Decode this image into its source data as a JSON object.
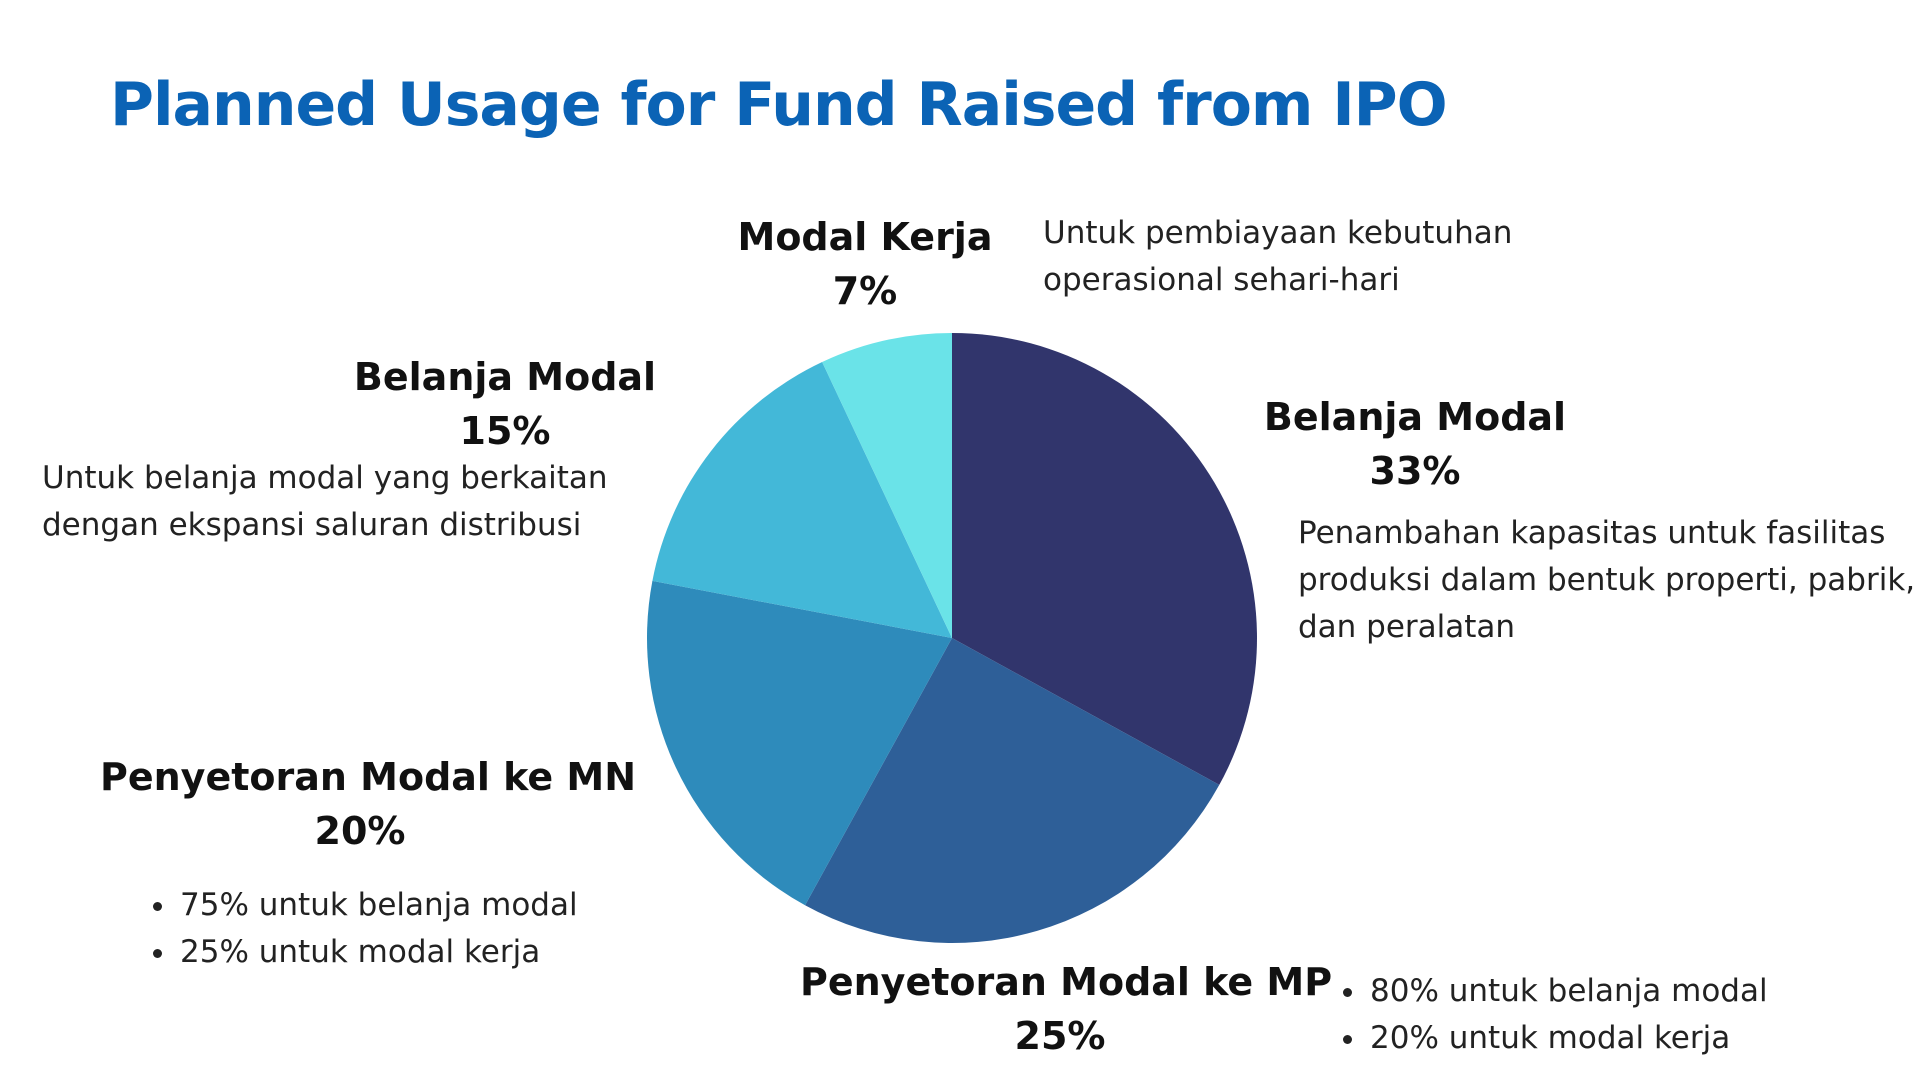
{
  "title": "Planned Usage for Fund Raised from IPO",
  "chart_data": {
    "type": "pie",
    "title": "Planned Usage for Fund Raised from IPO",
    "start": "12 o'clock",
    "direction": "clockwise",
    "slices": [
      {
        "label": "Belanja Modal",
        "value": 33,
        "display": "33%",
        "color": "#31356c",
        "description": [
          "Penambahan kapasitas untuk fasilitas",
          "produksi dalam bentuk properti, pabrik,",
          "dan peralatan"
        ]
      },
      {
        "label": "Penyetoran Modal ke MP",
        "value": 25,
        "display": "25%",
        "color": "#2e5f98",
        "bullets": [
          "80% untuk belanja modal",
          "20% untuk modal kerja"
        ]
      },
      {
        "label": "Penyetoran Modal ke MN",
        "value": 20,
        "display": "20%",
        "color": "#2e8bbb",
        "bullets": [
          "75% untuk belanja modal",
          "25% untuk modal kerja"
        ]
      },
      {
        "label": "Belanja Modal",
        "value": 15,
        "display": "15%",
        "color": "#43b8d8",
        "description": [
          "Untuk belanja modal yang berkaitan",
          "dengan ekspansi saluran distribusi"
        ]
      },
      {
        "label": "Modal Kerja",
        "value": 7,
        "display": "7%",
        "color": "#6ae3e8",
        "description": [
          "Untuk pembiayaan kebutuhan",
          "operasional sehari-hari"
        ]
      }
    ]
  }
}
